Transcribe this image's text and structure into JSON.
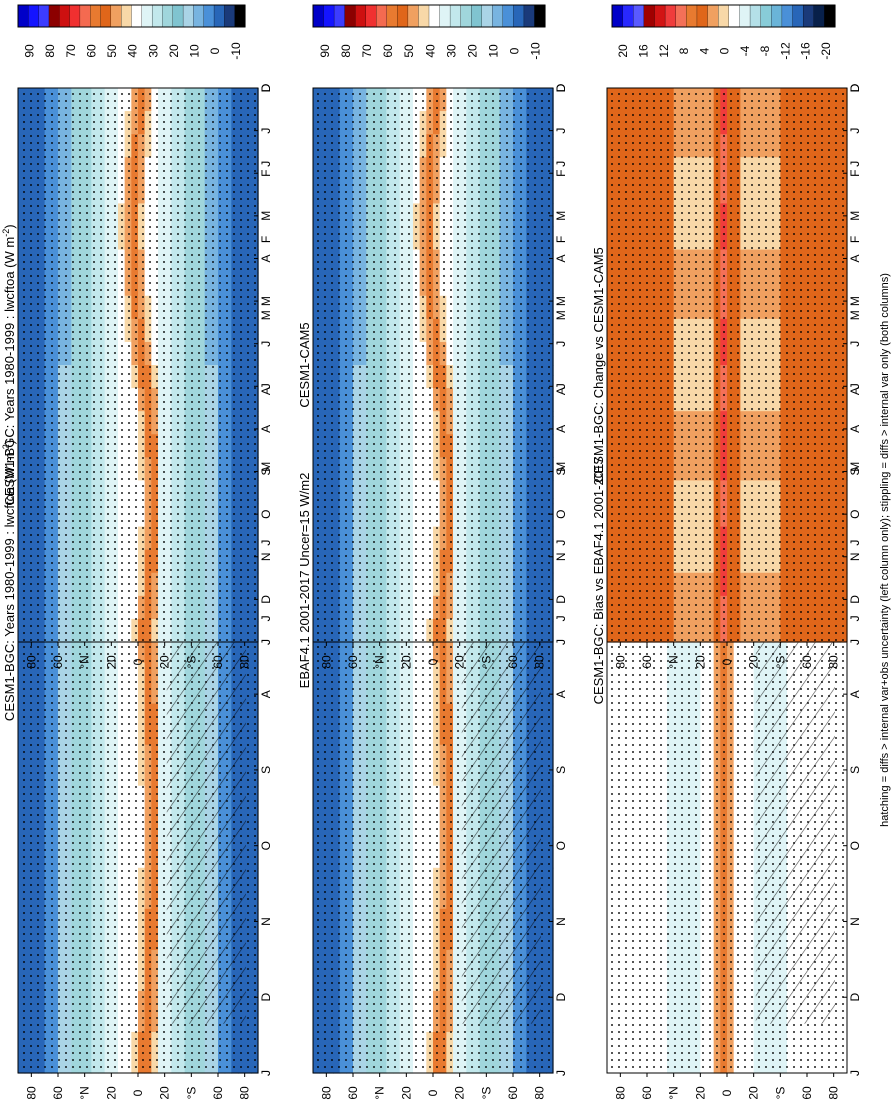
{
  "figure": {
    "footnote": "hatching = diffs > internal var+obs uncertainty (left column only); stippling = diffs > internal var only (both columns)"
  },
  "chart_data": [
    {
      "type": "heatmap",
      "panel": "model-left",
      "title": "CESM1-BGC: Years 1980-1999 : lwcftoa (W m",
      "title_units_sup": "-2",
      "title_units_close": ")",
      "x": [
        "D",
        "J",
        "F",
        "M",
        "A",
        "M",
        "J",
        "J",
        "A",
        "S",
        "O",
        "N",
        "D",
        "J"
      ],
      "y_ticks": [
        "80",
        "60",
        "°N",
        "20",
        "0",
        "20",
        "°S",
        "60",
        "80"
      ],
      "colorbar": [
        "90",
        "80",
        "70",
        "60",
        "50",
        "40",
        "30",
        "20",
        "10",
        "0",
        "-10"
      ],
      "hatching": true
    },
    {
      "type": "heatmap",
      "panel": "obs",
      "title": "EBAF4.1 2001-2017 Uncer=15 W/m2",
      "x": [
        "D",
        "J",
        "F",
        "M",
        "A",
        "M",
        "J",
        "J",
        "A",
        "S",
        "O",
        "N",
        "D",
        "J"
      ],
      "y_ticks": [
        "80",
        "60",
        "°N",
        "20",
        "0",
        "20",
        "°S",
        "60",
        "80"
      ],
      "colorbar": [
        "90",
        "80",
        "70",
        "60",
        "50",
        "40",
        "30",
        "20",
        "10",
        "0",
        "-10"
      ],
      "hatching": true
    },
    {
      "type": "heatmap",
      "panel": "bias",
      "title": "CESM1-BGC: Bias vs EBAF4.1 2001-2017",
      "x": [
        "D",
        "J",
        "F",
        "M",
        "A",
        "M",
        "J",
        "J",
        "A",
        "S",
        "O",
        "N",
        "D",
        "J"
      ],
      "y_ticks": [
        "80",
        "60",
        "°N",
        "20",
        "0",
        "20",
        "°S",
        "60",
        "80"
      ],
      "colorbar": [
        "20",
        "16",
        "12",
        "8",
        "4",
        "0",
        "-4",
        "-8",
        "-12",
        "-16",
        "-20"
      ],
      "hatching": true
    },
    {
      "type": "heatmap",
      "panel": "model-right",
      "title": "CESM1-BGC: Years 1980-1999 : lwcftoa (W m",
      "title_units_sup": "-2",
      "title_units_close": ")",
      "x": [
        "D",
        "J",
        "F",
        "M",
        "A",
        "M",
        "J",
        "J",
        "A",
        "S",
        "O",
        "N",
        "D",
        "J"
      ],
      "y_ticks": [
        "80",
        "60",
        "°N",
        "20",
        "0",
        "20",
        "°S",
        "60",
        "80"
      ],
      "colorbar": [
        "90",
        "80",
        "70",
        "60",
        "50",
        "40",
        "30",
        "20",
        "10",
        "0",
        "-10"
      ],
      "hatching": false
    },
    {
      "type": "heatmap",
      "panel": "ref",
      "title": "CESM1-CAM5",
      "x": [
        "D",
        "J",
        "F",
        "M",
        "A",
        "M",
        "J",
        "J",
        "A",
        "S",
        "O",
        "N",
        "D",
        "J"
      ],
      "y_ticks": [
        "80",
        "60",
        "°N",
        "20",
        "0",
        "20",
        "°S",
        "60",
        "80"
      ],
      "colorbar": [
        "90",
        "80",
        "70",
        "60",
        "50",
        "40",
        "30",
        "20",
        "10",
        "0",
        "-10"
      ],
      "hatching": false
    },
    {
      "type": "heatmap",
      "panel": "change",
      "title": "CESM1-BGC: Change vs CESM1-CAM5",
      "x": [
        "D",
        "J",
        "F",
        "M",
        "A",
        "M",
        "J",
        "J",
        "A",
        "S",
        "O",
        "N",
        "D",
        "J"
      ],
      "y_ticks": [
        "80",
        "60",
        "°N",
        "20",
        "0",
        "20",
        "°S",
        "60",
        "80"
      ],
      "colorbar": [
        "20",
        "16",
        "12",
        "8",
        "4",
        "0",
        "-4",
        "-8",
        "-12",
        "-16",
        "-20"
      ],
      "hatching": false
    }
  ],
  "colors": {
    "abs_palette": [
      "#0000c8",
      "#1414ff",
      "#3c3cff",
      "#8c0000",
      "#cd1010",
      "#f03030",
      "#f46a50",
      "#e87a30",
      "#e0661a",
      "#f0a060",
      "#f8d8a8",
      "#ffffff",
      "#dff4f6",
      "#c2e8ec",
      "#a0d6dc",
      "#80c4d0",
      "#aad4e6",
      "#78b4e0",
      "#4a90d8",
      "#2866b8",
      "#1a3a7a",
      "#000000"
    ],
    "diff_palette": [
      "#0000c8",
      "#2828ff",
      "#5a5aff",
      "#a00000",
      "#d21414",
      "#f03c3c",
      "#f47058",
      "#e87a30",
      "#e0661a",
      "#f0a060",
      "#f8d8a8",
      "#ffffff",
      "#dff4f6",
      "#b4e0e8",
      "#88ccd8",
      "#6ab4d8",
      "#4a90d8",
      "#2866b8",
      "#1a3a7a",
      "#08204a",
      "#000000"
    ]
  }
}
